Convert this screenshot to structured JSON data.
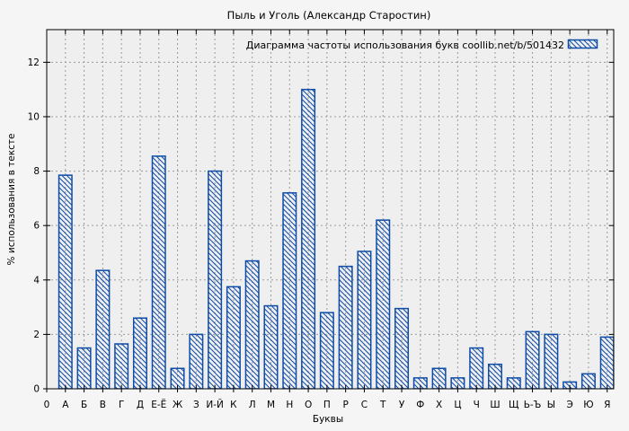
{
  "chart_data": {
    "type": "bar",
    "title": "Пыль и Уголь (Александр Старостин)",
    "legend": {
      "label": "Диаграмма частоты использования букв  coollib.net/b/501432",
      "position": "top-right",
      "swatch": "blue-diagonal-hatch"
    },
    "xlabel": "Буквы",
    "ylabel": "% использования в тексте",
    "x_origin_tick": "0",
    "categories": [
      "А",
      "Б",
      "В",
      "Г",
      "Д",
      "Е-Ё",
      "Ж",
      "З",
      "И-Й",
      "К",
      "Л",
      "М",
      "Н",
      "О",
      "П",
      "Р",
      "С",
      "Т",
      "У",
      "Ф",
      "Х",
      "Ц",
      "Ч",
      "Ш",
      "Щ",
      "Ь-Ъ",
      "Ы",
      "Э",
      "Ю",
      "Я"
    ],
    "values": [
      7.85,
      1.5,
      4.35,
      1.65,
      2.6,
      8.55,
      0.75,
      2.0,
      8.0,
      3.75,
      4.7,
      3.05,
      7.2,
      11.0,
      2.8,
      4.5,
      5.05,
      6.2,
      2.95,
      0.4,
      0.75,
      0.4,
      1.5,
      0.9,
      0.4,
      2.1,
      2.0,
      0.25,
      0.55,
      1.9
    ],
    "yticks": [
      0,
      2,
      4,
      6,
      8,
      10,
      12
    ],
    "ylim": [
      0,
      13.2
    ],
    "grid": true,
    "colors": {
      "bar": "#0e4ca8",
      "grid": "#9b9b9b",
      "page_bg": "#f5f5f5",
      "plot_bg": "#efefef",
      "border": "#000000",
      "text": "#000000"
    }
  }
}
